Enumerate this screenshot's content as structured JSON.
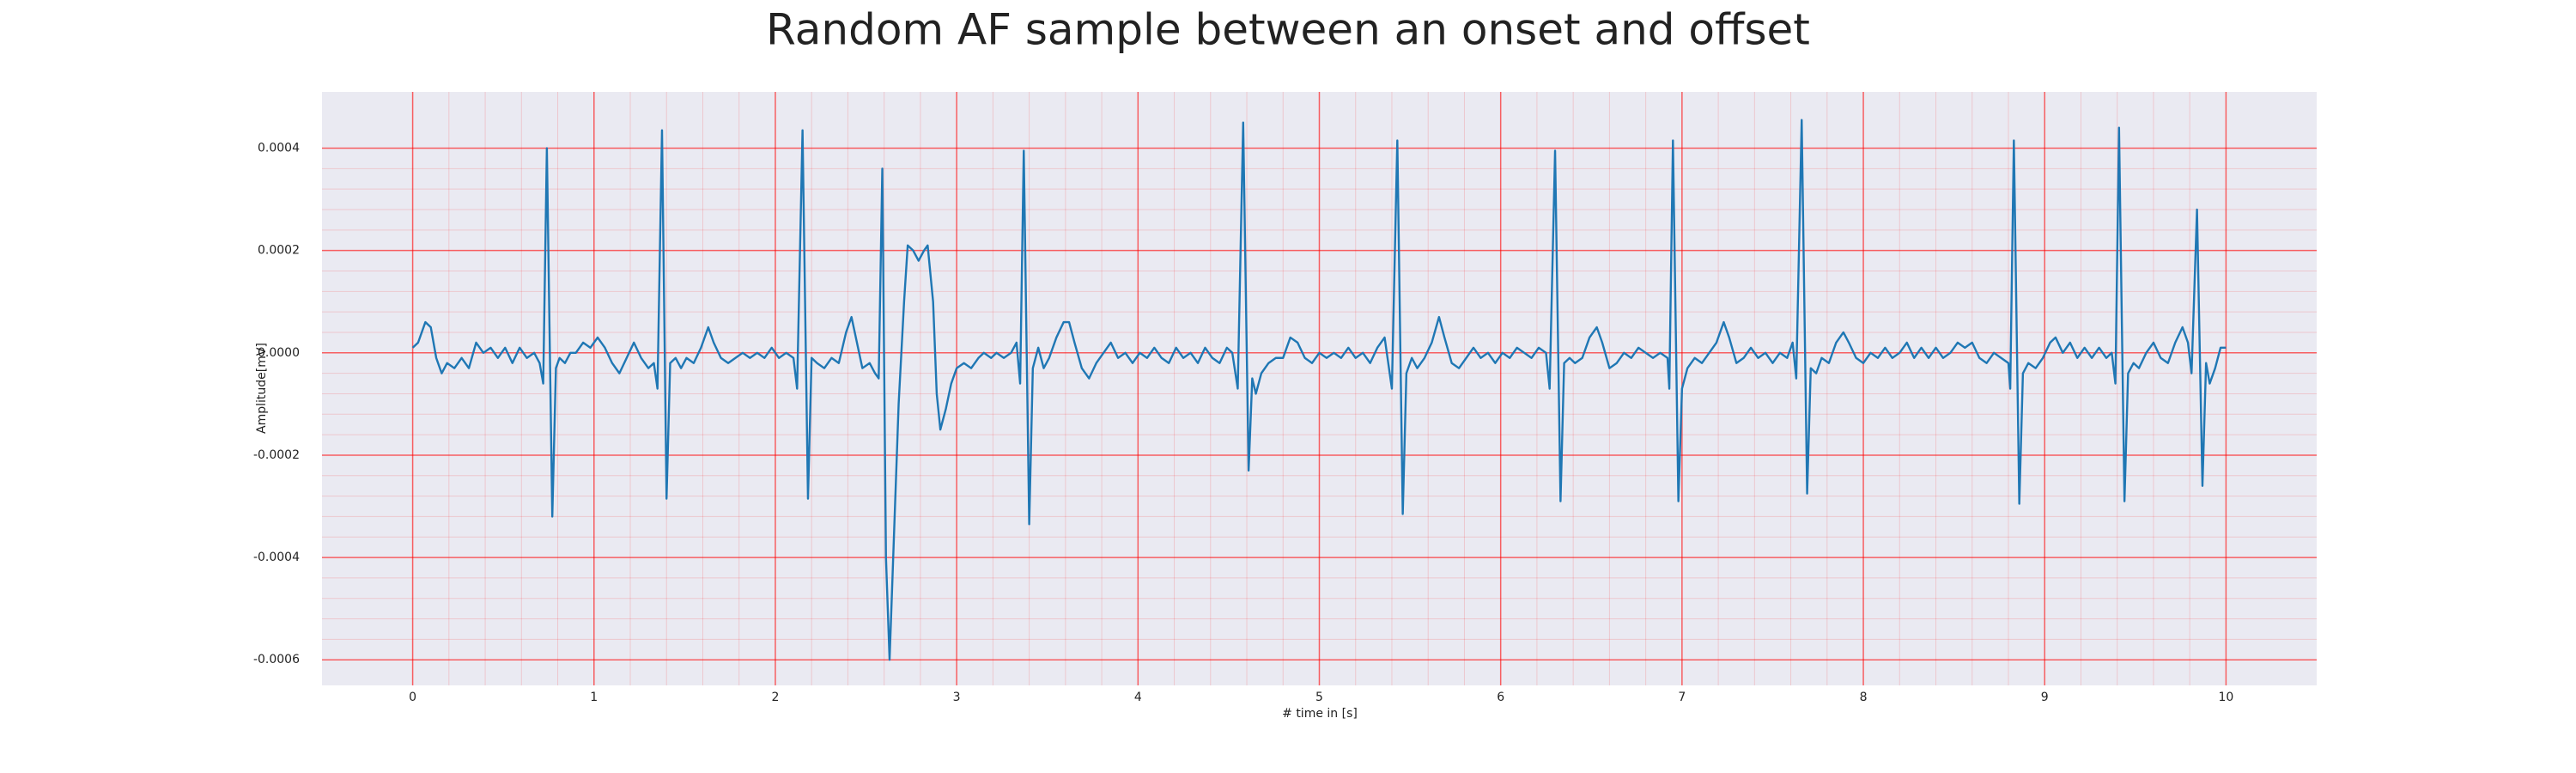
{
  "chart_data": {
    "type": "line",
    "title": "Random AF sample between an onset and offset",
    "x_label": "# time in [s]",
    "y_label": "Amplitude[mV]",
    "color": "#1f77b4",
    "background": "#eaeaf2",
    "grid": true,
    "grid_color": "#ff0000",
    "minor_grid": true,
    "xlim": [
      -0.5,
      10.5
    ],
    "ylim": [
      -0.00065,
      0.00051
    ],
    "xticks": [
      0,
      1,
      2,
      3,
      4,
      5,
      6,
      7,
      8,
      9,
      10
    ],
    "yticks": [
      0.0004,
      0.0002,
      {
        "value": 0,
        "label": "0.0000"
      },
      -0.0002,
      -0.0004,
      -0.0006
    ],
    "x": [
      0,
      0.03,
      0.07,
      0.1,
      0.13,
      0.16,
      0.19,
      0.23,
      0.27,
      0.31,
      0.35,
      0.39,
      0.43,
      0.47,
      0.51,
      0.55,
      0.59,
      0.63,
      0.67,
      0.7,
      0.72,
      0.74,
      0.77,
      0.79,
      0.81,
      0.84,
      0.87,
      0.9,
      0.94,
      0.98,
      1.02,
      1.06,
      1.1,
      1.14,
      1.18,
      1.22,
      1.26,
      1.3,
      1.33,
      1.35,
      1.375,
      1.4,
      1.42,
      1.45,
      1.48,
      1.51,
      1.55,
      1.59,
      1.63,
      1.66,
      1.7,
      1.74,
      1.78,
      1.82,
      1.86,
      1.9,
      1.94,
      1.98,
      2.02,
      2.06,
      2.1,
      2.12,
      2.15,
      2.18,
      2.2,
      2.23,
      2.27,
      2.31,
      2.35,
      2.39,
      2.42,
      2.45,
      2.48,
      2.52,
      2.55,
      2.57,
      2.59,
      2.61,
      2.63,
      2.65,
      2.68,
      2.71,
      2.73,
      2.76,
      2.79,
      2.82,
      2.84,
      2.87,
      2.89,
      2.91,
      2.94,
      2.97,
      3.0,
      3.04,
      3.08,
      3.12,
      3.15,
      3.19,
      3.22,
      3.26,
      3.3,
      3.33,
      3.35,
      3.37,
      3.4,
      3.42,
      3.45,
      3.48,
      3.51,
      3.55,
      3.59,
      3.62,
      3.65,
      3.69,
      3.73,
      3.77,
      3.81,
      3.85,
      3.89,
      3.93,
      3.97,
      4.01,
      4.05,
      4.09,
      4.13,
      4.17,
      4.21,
      4.25,
      4.29,
      4.33,
      4.37,
      4.41,
      4.45,
      4.49,
      4.52,
      4.55,
      4.58,
      4.61,
      4.63,
      4.65,
      4.68,
      4.72,
      4.76,
      4.8,
      4.84,
      4.88,
      4.92,
      4.96,
      5.0,
      5.04,
      5.08,
      5.12,
      5.16,
      5.2,
      5.24,
      5.28,
      5.32,
      5.36,
      5.4,
      5.43,
      5.46,
      5.48,
      5.51,
      5.54,
      5.58,
      5.62,
      5.66,
      5.69,
      5.73,
      5.77,
      5.81,
      5.85,
      5.89,
      5.93,
      5.97,
      6.01,
      6.05,
      6.09,
      6.13,
      6.17,
      6.21,
      6.25,
      6.27,
      6.3,
      6.33,
      6.35,
      6.38,
      6.41,
      6.45,
      6.49,
      6.53,
      6.56,
      6.6,
      6.64,
      6.68,
      6.72,
      6.76,
      6.8,
      6.84,
      6.88,
      6.92,
      6.93,
      6.95,
      6.98,
      7.0,
      7.03,
      7.07,
      7.11,
      7.15,
      7.19,
      7.23,
      7.26,
      7.3,
      7.34,
      7.38,
      7.42,
      7.46,
      7.5,
      7.54,
      7.58,
      7.61,
      7.63,
      7.66,
      7.69,
      7.71,
      7.74,
      7.77,
      7.81,
      7.85,
      7.89,
      7.92,
      7.96,
      8.0,
      8.04,
      8.08,
      8.12,
      8.16,
      8.2,
      8.24,
      8.28,
      8.32,
      8.36,
      8.4,
      8.44,
      8.48,
      8.52,
      8.56,
      8.6,
      8.64,
      8.68,
      8.72,
      8.76,
      8.8,
      8.81,
      8.83,
      8.86,
      8.88,
      8.91,
      8.95,
      8.99,
      9.03,
      9.06,
      9.1,
      9.14,
      9.18,
      9.22,
      9.26,
      9.3,
      9.34,
      9.37,
      9.39,
      9.41,
      9.44,
      9.46,
      9.49,
      9.52,
      9.56,
      9.6,
      9.64,
      9.68,
      9.72,
      9.76,
      9.79,
      9.81,
      9.84,
      9.87,
      9.89,
      9.91,
      9.94,
      9.97,
      10.0
    ],
    "values": [
      1e-05,
      2e-05,
      6e-05,
      5e-05,
      -1e-05,
      -4e-05,
      -2e-05,
      -3e-05,
      -1e-05,
      -3e-05,
      2e-05,
      0,
      1e-05,
      -1e-05,
      1e-05,
      -2e-05,
      1e-05,
      -1e-05,
      0,
      -2e-05,
      -6e-05,
      0.0004,
      -0.00032,
      -3e-05,
      -1e-05,
      -2e-05,
      0,
      0,
      2e-05,
      1e-05,
      3e-05,
      1e-05,
      -2e-05,
      -4e-05,
      -1e-05,
      2e-05,
      -1e-05,
      -3e-05,
      -2e-05,
      -7e-05,
      0.000435,
      -0.000285,
      -2e-05,
      -1e-05,
      -3e-05,
      -1e-05,
      -2e-05,
      1e-05,
      5e-05,
      2e-05,
      -1e-05,
      -2e-05,
      -1e-05,
      0,
      -1e-05,
      0,
      -1e-05,
      1e-05,
      -1e-05,
      0,
      -1e-05,
      -7e-05,
      0.000435,
      -0.000285,
      -1e-05,
      -2e-05,
      -3e-05,
      -1e-05,
      -2e-05,
      4e-05,
      7e-05,
      2e-05,
      -3e-05,
      -2e-05,
      -4e-05,
      -5e-05,
      0.00036,
      -0.0004,
      -0.0006,
      -0.0004,
      -0.0001,
      0.0001,
      0.00021,
      0.0002,
      0.00018,
      0.0002,
      0.00021,
      0.0001,
      -8e-05,
      -0.00015,
      -0.00011,
      -6e-05,
      -3e-05,
      -2e-05,
      -3e-05,
      -1e-05,
      0,
      -1e-05,
      0,
      -1e-05,
      0,
      2e-05,
      -6e-05,
      0.000395,
      -0.000335,
      -3e-05,
      1e-05,
      -3e-05,
      -1e-05,
      3e-05,
      6e-05,
      6e-05,
      2e-05,
      -3e-05,
      -5e-05,
      -2e-05,
      0,
      2e-05,
      -1e-05,
      0,
      -2e-05,
      0,
      -1e-05,
      1e-05,
      -1e-05,
      -2e-05,
      1e-05,
      -1e-05,
      0,
      -2e-05,
      1e-05,
      -1e-05,
      -2e-05,
      1e-05,
      0,
      -7e-05,
      0.00045,
      -0.00023,
      -5e-05,
      -8e-05,
      -4e-05,
      -2e-05,
      -1e-05,
      -1e-05,
      3e-05,
      2e-05,
      -1e-05,
      -2e-05,
      0,
      -1e-05,
      0,
      -1e-05,
      1e-05,
      -1e-05,
      0,
      -2e-05,
      1e-05,
      3e-05,
      -7e-05,
      0.000415,
      -0.000315,
      -4e-05,
      -1e-05,
      -3e-05,
      -1e-05,
      2e-05,
      7e-05,
      3e-05,
      -2e-05,
      -3e-05,
      -1e-05,
      1e-05,
      -1e-05,
      0,
      -2e-05,
      0,
      -1e-05,
      1e-05,
      0,
      -1e-05,
      1e-05,
      0,
      -7e-05,
      0.000395,
      -0.00029,
      -2e-05,
      -1e-05,
      -2e-05,
      -1e-05,
      3e-05,
      5e-05,
      2e-05,
      -3e-05,
      -2e-05,
      0,
      -1e-05,
      1e-05,
      0,
      -1e-05,
      0,
      -1e-05,
      -7e-05,
      0.000415,
      -0.00029,
      -7e-05,
      -3e-05,
      -1e-05,
      -2e-05,
      0,
      2e-05,
      6e-05,
      3e-05,
      -2e-05,
      -1e-05,
      1e-05,
      -1e-05,
      0,
      -2e-05,
      0,
      -1e-05,
      2e-05,
      -5e-05,
      0.000455,
      -0.000275,
      -3e-05,
      -4e-05,
      -1e-05,
      -2e-05,
      2e-05,
      4e-05,
      2e-05,
      -1e-05,
      -2e-05,
      0,
      -1e-05,
      1e-05,
      -1e-05,
      0,
      2e-05,
      -1e-05,
      1e-05,
      -1e-05,
      1e-05,
      -1e-05,
      0,
      2e-05,
      1e-05,
      2e-05,
      -1e-05,
      -2e-05,
      0,
      -1e-05,
      -2e-05,
      -7e-05,
      0.000415,
      -0.000295,
      -4e-05,
      -2e-05,
      -3e-05,
      -1e-05,
      2e-05,
      3e-05,
      0,
      2e-05,
      -1e-05,
      1e-05,
      -1e-05,
      1e-05,
      -1e-05,
      0,
      -6e-05,
      0.00044,
      -0.00029,
      -4e-05,
      -2e-05,
      -3e-05,
      0,
      2e-05,
      -1e-05,
      -2e-05,
      2e-05,
      5e-05,
      2e-05,
      -4e-05,
      0.00028,
      -0.00026,
      -2e-05,
      -6e-05,
      -3e-05,
      1e-05,
      1e-05
    ]
  }
}
